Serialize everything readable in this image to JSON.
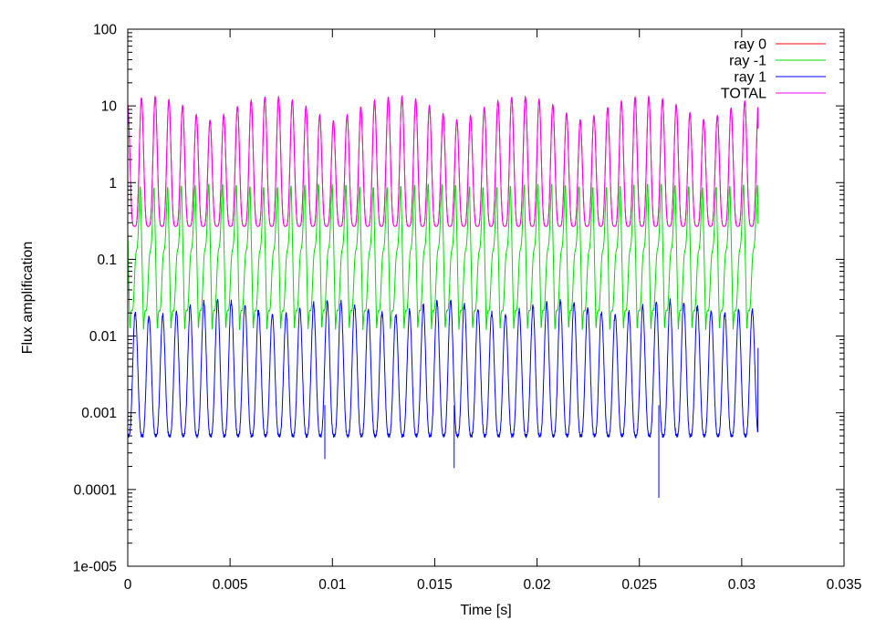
{
  "chart_data": {
    "type": "line",
    "title": "",
    "xlabel": "Time [s]",
    "ylabel": "Flux amplification",
    "xscale": "linear",
    "yscale": "log",
    "xlim": [
      0,
      0.035
    ],
    "ylim": [
      1e-05,
      100
    ],
    "x_ticks": [
      0,
      0.005,
      0.01,
      0.015,
      0.02,
      0.025,
      0.03,
      0.035
    ],
    "x_tick_labels": [
      "0",
      "0.005",
      "0.01",
      "0.015",
      "0.02",
      "0.025",
      "0.03",
      "0.035"
    ],
    "y_ticks": [
      1e-05,
      0.0001,
      0.001,
      0.01,
      0.1,
      1,
      10,
      100
    ],
    "y_tick_labels": [
      "1e-005",
      "0.0001",
      "0.001",
      "0.01",
      "0.1",
      "1",
      "10",
      "100"
    ],
    "grid": false,
    "legend_position": "top-right",
    "x_start": 0,
    "x_end": 0.0308,
    "oscillation_period": 0.00067,
    "series": [
      {
        "name": "ray 0",
        "color": "#ff0000",
        "peak_values": [
          10.3,
          12.7,
          13.2,
          12.1,
          10.1,
          7.7,
          6.5,
          7.7,
          9.8,
          11.8,
          13.0,
          13.1,
          11.9,
          9.9,
          7.6,
          6.4,
          7.6,
          9.7,
          11.7,
          13.0,
          13.2,
          12.3,
          10.1,
          7.9,
          6.6,
          7.5,
          9.6,
          11.6,
          12.9,
          13.1,
          12.2,
          10.4,
          8.0,
          6.6,
          7.4,
          9.5,
          11.5,
          13.0,
          13.2,
          12.3,
          10.4,
          8.1,
          6.7,
          7.4,
          9.4,
          11.5
        ],
        "trough_value": 0.27,
        "end_value": 5.1
      },
      {
        "name": "ray -1",
        "color": "#00dd00",
        "peak_values": [
          0.95,
          0.88,
          0.85,
          0.86,
          0.9,
          0.93,
          0.95,
          0.95,
          0.92,
          0.88,
          0.86,
          0.86,
          0.9,
          0.93,
          0.95,
          0.95,
          0.92,
          0.88,
          0.86,
          0.86,
          0.89,
          0.93,
          0.95,
          0.95,
          0.92,
          0.88,
          0.86,
          0.86,
          0.89,
          0.93,
          0.95,
          0.95,
          0.92,
          0.88,
          0.86,
          0.86,
          0.89,
          0.93,
          0.95,
          0.95,
          0.92,
          0.88,
          0.86,
          0.86,
          0.89,
          0.93
        ],
        "trough_value": 0.012,
        "end_value": 0.29
      },
      {
        "name": "ray 1",
        "color": "#0000ff",
        "peak_values": [
          0.022,
          0.02,
          0.018,
          0.019,
          0.021,
          0.025,
          0.028,
          0.03,
          0.028,
          0.025,
          0.021,
          0.019,
          0.02,
          0.023,
          0.027,
          0.029,
          0.028,
          0.025,
          0.022,
          0.02,
          0.019,
          0.022,
          0.026,
          0.029,
          0.029,
          0.026,
          0.022,
          0.02,
          0.019,
          0.022,
          0.025,
          0.028,
          0.029,
          0.027,
          0.023,
          0.02,
          0.019,
          0.021,
          0.025,
          0.028,
          0.029,
          0.027,
          0.024,
          0.021,
          0.02,
          0.022
        ],
        "trough_value": 0.0005,
        "end_value": 0.007,
        "spikes": [
          {
            "x": 0.00963,
            "y": 0.00025
          },
          {
            "x": 0.01595,
            "y": 0.00019
          },
          {
            "x": 0.02595,
            "y": 7.8e-05
          }
        ]
      },
      {
        "name": "TOTAL",
        "color": "#ff00ff",
        "peak_values": [
          10.3,
          12.7,
          13.2,
          12.1,
          10.1,
          7.7,
          6.5,
          7.7,
          9.8,
          11.8,
          13.0,
          13.1,
          11.9,
          9.9,
          7.6,
          6.4,
          7.6,
          9.7,
          11.7,
          13.0,
          13.2,
          12.3,
          10.1,
          7.9,
          6.6,
          7.5,
          9.6,
          11.6,
          12.9,
          13.1,
          12.2,
          10.4,
          8.0,
          6.6,
          7.4,
          9.5,
          11.5,
          13.0,
          13.2,
          12.3,
          10.4,
          8.1,
          6.7,
          7.4,
          9.4,
          11.5
        ],
        "trough_value": 0.27,
        "end_value": 5.1
      }
    ]
  }
}
